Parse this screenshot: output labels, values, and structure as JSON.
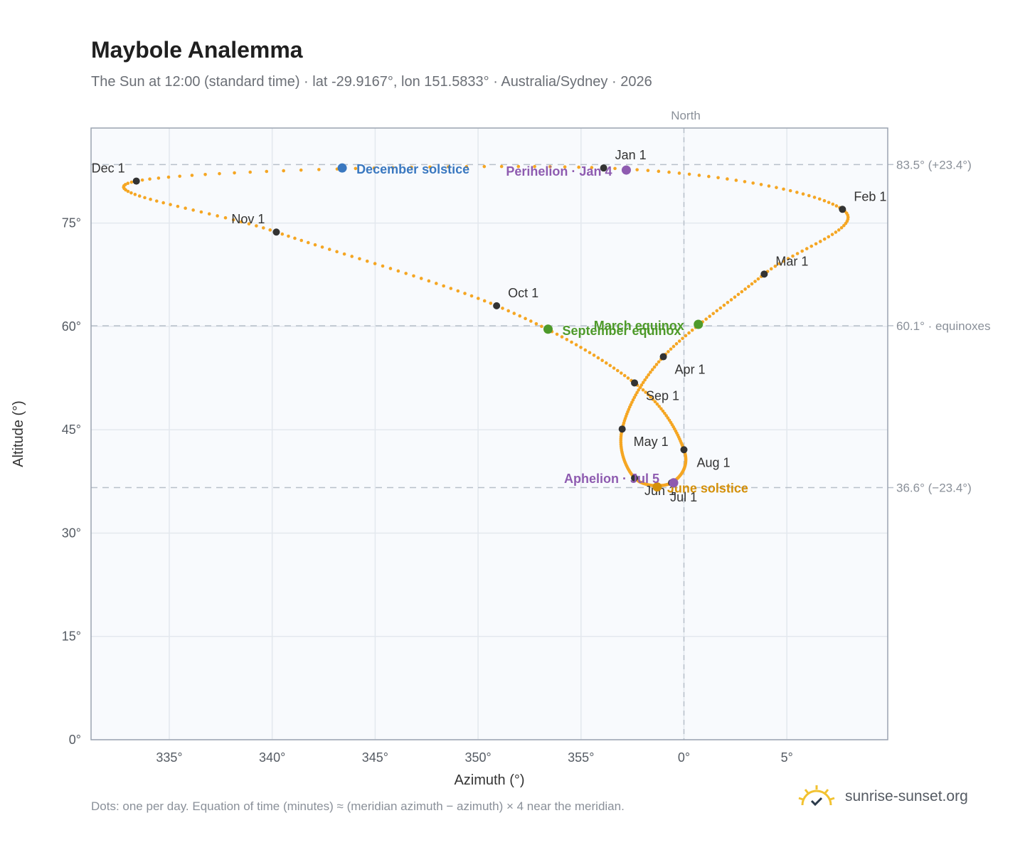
{
  "header": {
    "title": "Maybole Analemma",
    "subtitle": "The Sun at 12:00 (standard time) · lat -29.9167°, lon 151.5833° · Australia/Sydney · 2026"
  },
  "footer": {
    "note": "Dots: one per day. Equation of time (minutes) ≈ (meridian azimuth − azimuth) × 4 near the meridian.",
    "brand": "sunrise-sunset.org"
  },
  "colors": {
    "path": "#f5a623",
    "month_dot": "#333333",
    "december_solstice": "#3a78c0",
    "june_solstice": "#d4900a",
    "equinox": "#4e9a2a",
    "perihelion_aphelion": "#8e5bb0",
    "plot_bg": "#f8fafd",
    "grid": "#e3e8ee",
    "frame": "#9aa3b0",
    "ref_line": "#b8c0ca"
  },
  "chart_data": {
    "type": "scatter",
    "xlabel": "Azimuth (°)",
    "ylabel": "Altitude (°)",
    "xlim": [
      331.2,
      9.9
    ],
    "ylim": [
      0,
      88.8
    ],
    "x_ticks": [
      {
        "value": 335,
        "label": "335°"
      },
      {
        "value": 340,
        "label": "340°"
      },
      {
        "value": 345,
        "label": "345°"
      },
      {
        "value": 350,
        "label": "350°"
      },
      {
        "value": 355,
        "label": "355°"
      },
      {
        "value": 0,
        "label": "0°"
      },
      {
        "value": 5,
        "label": "5°"
      }
    ],
    "y_ticks": [
      {
        "value": 0,
        "label": "0°"
      },
      {
        "value": 15,
        "label": "15°"
      },
      {
        "value": 30,
        "label": "30°"
      },
      {
        "value": 45,
        "label": "45°"
      },
      {
        "value": 60,
        "label": "60°"
      },
      {
        "value": 75,
        "label": "75°"
      }
    ],
    "grid": true,
    "north_marker": {
      "azimuth": 0,
      "label": "North"
    },
    "reference_lines": [
      {
        "altitude": 83.5,
        "label": "83.5° (+23.4°)"
      },
      {
        "altitude": 60.1,
        "label": "60.1° · equinoxes"
      },
      {
        "altitude": 36.6,
        "label": "36.6° (−23.4°)"
      }
    ],
    "month_markers": [
      {
        "label": "Jan 1",
        "azimuth": 356.1,
        "altitude": 83.0
      },
      {
        "label": "Feb 1",
        "azimuth": 7.7,
        "altitude": 77.0
      },
      {
        "label": "Mar 1",
        "azimuth": 3.9,
        "altitude": 67.6
      },
      {
        "label": "Apr 1",
        "azimuth": 359.0,
        "altitude": 55.6
      },
      {
        "label": "May 1",
        "azimuth": 357.0,
        "altitude": 45.1
      },
      {
        "label": "Jun 1",
        "azimuth": 357.6,
        "altitude": 38.0
      },
      {
        "label": "Jul 1",
        "azimuth": 359.4,
        "altitude": 37.3
      },
      {
        "label": "Aug 1",
        "azimuth": 0.0,
        "altitude": 42.1
      },
      {
        "label": "Sep 1",
        "azimuth": 357.6,
        "altitude": 51.8
      },
      {
        "label": "Oct 1",
        "azimuth": 350.9,
        "altitude": 63.0
      },
      {
        "label": "Nov 1",
        "azimuth": 340.2,
        "altitude": 73.7
      },
      {
        "label": "Dec 1",
        "azimuth": 333.4,
        "altitude": 81.1
      }
    ],
    "events": [
      {
        "label": "December solstice",
        "azimuth": 343.4,
        "altitude": 83.0,
        "color": "#3a78c0"
      },
      {
        "label": "Perihelion · Jan 4",
        "azimuth": 357.2,
        "altitude": 82.7,
        "color": "#8e5bb0"
      },
      {
        "label": "March equinox",
        "azimuth": 0.7,
        "altitude": 60.3,
        "color": "#4e9a2a"
      },
      {
        "label": "September equinox",
        "azimuth": 353.4,
        "altitude": 59.6,
        "color": "#4e9a2a"
      },
      {
        "label": "June solstice",
        "azimuth": 358.7,
        "altitude": 36.7,
        "color": "#d4900a"
      },
      {
        "label": "Aphelion · Jul 5",
        "azimuth": 359.5,
        "altitude": 37.3,
        "color": "#8e5bb0"
      }
    ]
  }
}
